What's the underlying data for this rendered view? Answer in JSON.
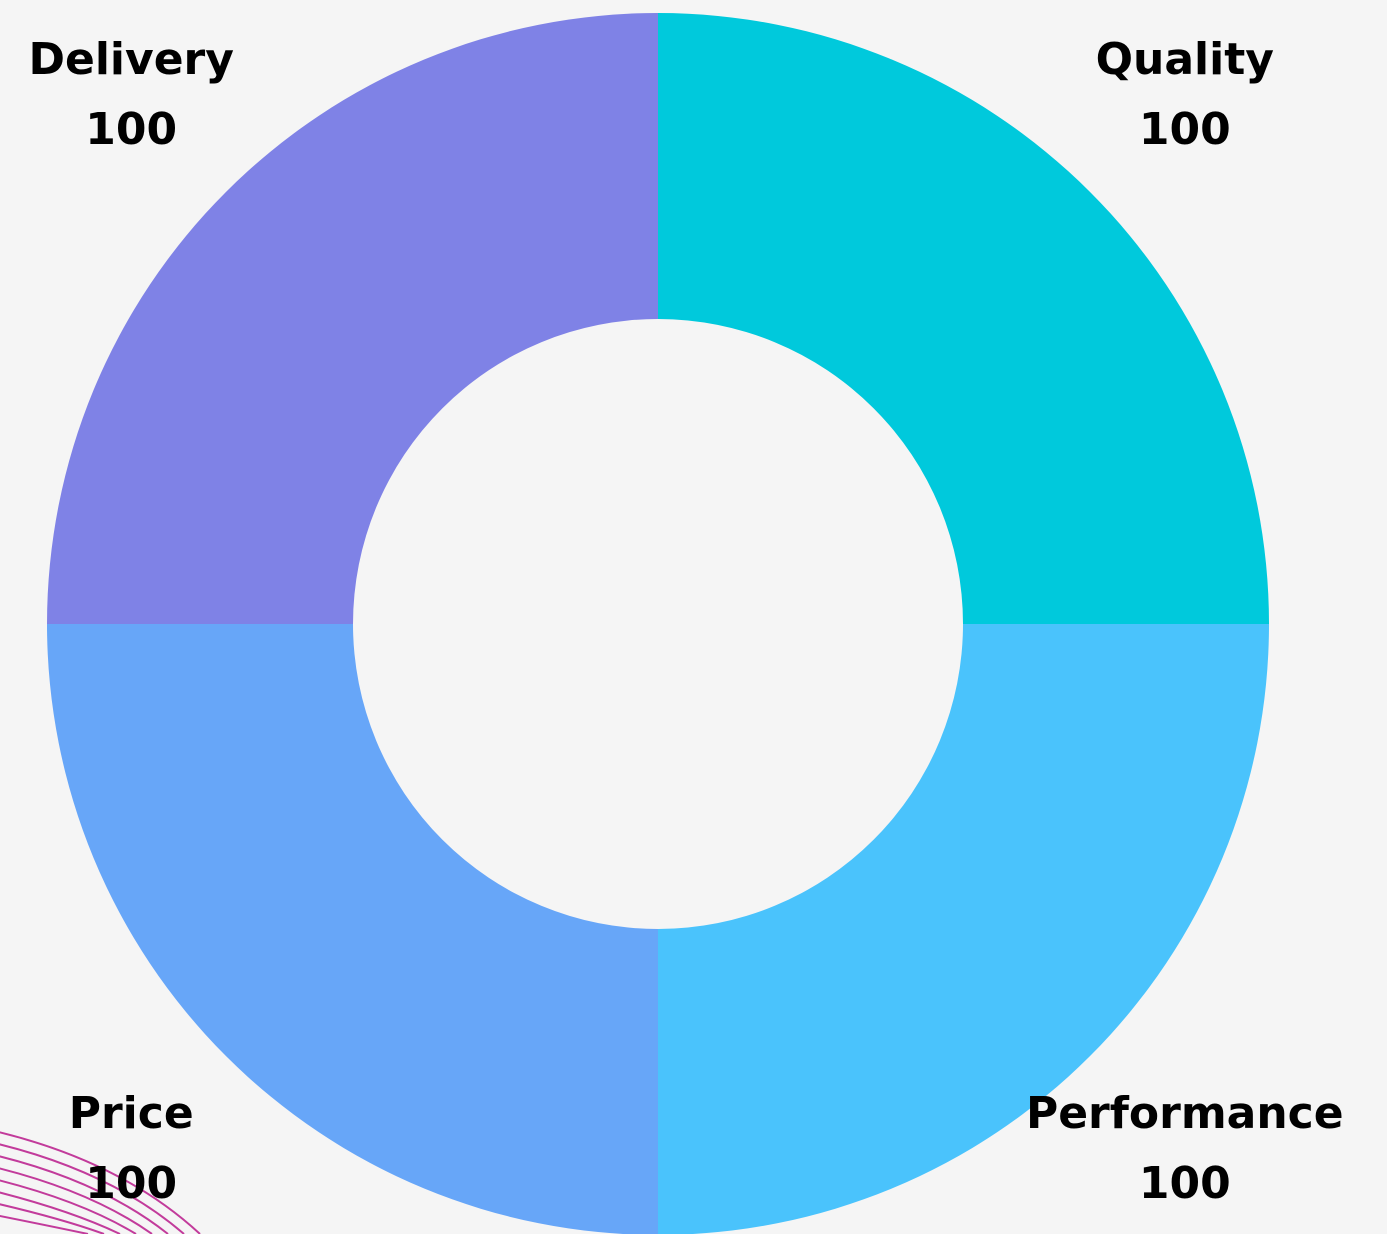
{
  "chart_data": {
    "type": "donut",
    "categories": [
      "Quality",
      "Performance",
      "Price",
      "Delivery"
    ],
    "values": [
      100,
      100,
      100,
      100
    ],
    "colors": [
      "#00c9dc",
      "#4ac3fc",
      "#67a6f8",
      "#7f82e6"
    ]
  }
}
